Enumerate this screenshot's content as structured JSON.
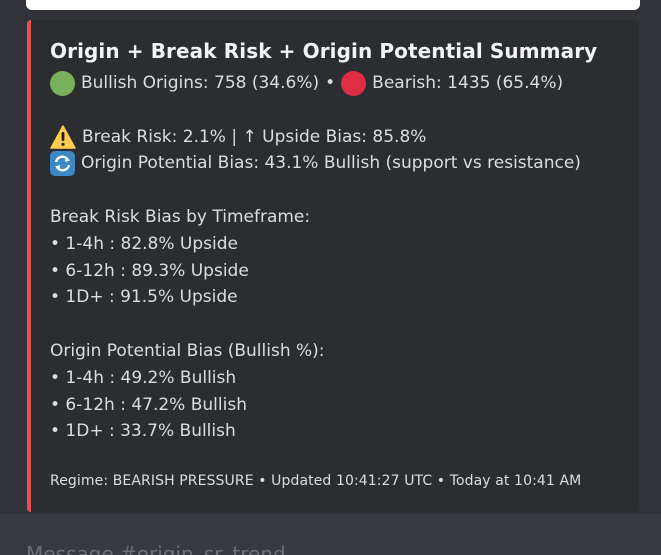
{
  "embed": {
    "title": "Origin + Break Risk + Origin Potential Summary",
    "accent_color": "#e8514f",
    "origins": {
      "bullish_icon": "green-circle-icon",
      "bullish_text": "Bullish Origins: 758 (34.6%)",
      "separator": "•",
      "bearish_icon": "red-circle-icon",
      "bearish_text": "Bearish: 1435 (65.4%)"
    },
    "break_risk_line": "Break Risk: 2.1% | ↑ Upside Bias: 85.8%",
    "origin_potential_line": "Origin Potential Bias: 43.1% Bullish (support vs resistance)",
    "break_risk_by_tf": {
      "heading": "Break Risk Bias by Timeframe:",
      "items": [
        "• 1-4h : 82.8% Upside",
        "• 6-12h : 89.3% Upside",
        "• 1D+ : 91.5% Upside"
      ]
    },
    "origin_potential_bias": {
      "heading": "Origin Potential Bias (Bullish %):",
      "items": [
        "• 1-4h : 49.2% Bullish",
        "• 6-12h : 47.2% Bullish",
        "• 1D+ : 33.7% Bullish"
      ]
    },
    "footer": "Regime: BEARISH PRESSURE • Updated 10:41:27 UTC • Today at 10:41 AM"
  },
  "composer": {
    "placeholder": "Message #origin_sr_trend"
  }
}
